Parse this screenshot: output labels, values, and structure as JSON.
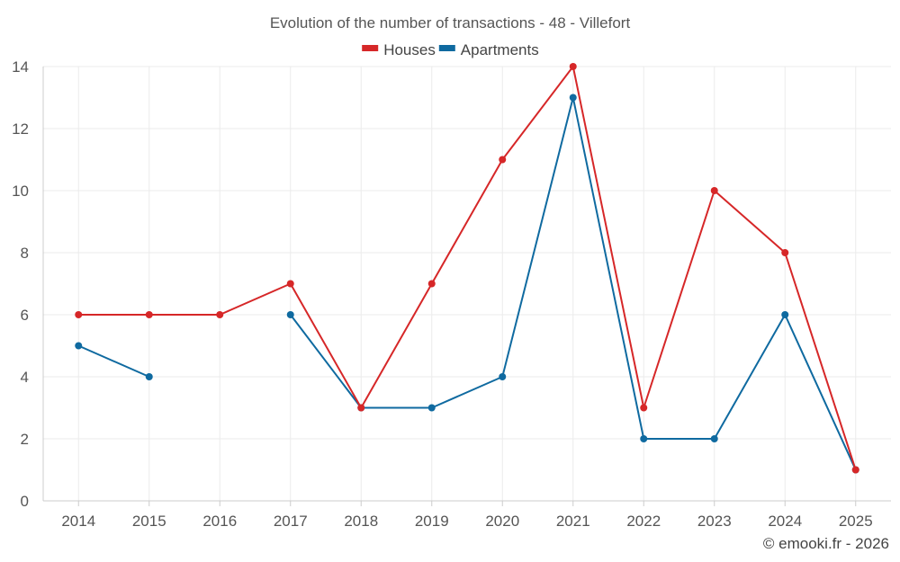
{
  "chart_data": {
    "type": "line",
    "title": "Evolution of the number of transactions - 48 - Villefort",
    "categories": [
      "2014",
      "2015",
      "2016",
      "2017",
      "2018",
      "2019",
      "2020",
      "2021",
      "2022",
      "2023",
      "2024",
      "2025"
    ],
    "series": [
      {
        "name": "Houses",
        "color": "#d62728",
        "values": [
          6,
          6,
          6,
          7,
          3,
          7,
          11,
          14,
          3,
          10,
          8,
          1
        ]
      },
      {
        "name": "Apartments",
        "color": "#0f6aa0",
        "values": [
          5,
          4,
          null,
          6,
          3,
          3,
          4,
          13,
          2,
          2,
          6,
          1
        ]
      }
    ],
    "ylim": [
      0,
      14
    ],
    "yticks": [
      0,
      2,
      4,
      6,
      8,
      10,
      12,
      14
    ],
    "xlabel": "",
    "ylabel": "",
    "legend": "top-center",
    "grid": true
  },
  "footer": {
    "credit": "© emooki.fr - 2026"
  }
}
